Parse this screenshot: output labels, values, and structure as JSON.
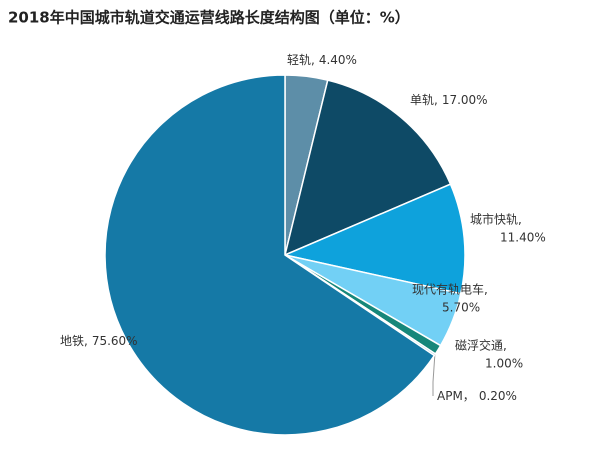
{
  "chart_data": {
    "type": "pie",
    "title": "2018年中国城市轨道交通运营线路长度结构图（单位：%）",
    "categories": [
      "轻轨,",
      "单轨,",
      "城市快轨,",
      "现代有轨电车,",
      "磁浮交通,",
      "APM，",
      "地铁,"
    ],
    "values": [
      4.4,
      17.0,
      11.4,
      5.7,
      1.0,
      0.2,
      75.6
    ],
    "value_labels": [
      "4.40%",
      "17.00%",
      "11.40%",
      "5.70%",
      "1.00%",
      "0.20%",
      "75.60%"
    ],
    "colors": [
      "#5d8ea8",
      "#0e4a66",
      "#0ea2dc",
      "#72d0f5",
      "#16877a",
      "#9cc6de",
      "#1579a6"
    ]
  }
}
